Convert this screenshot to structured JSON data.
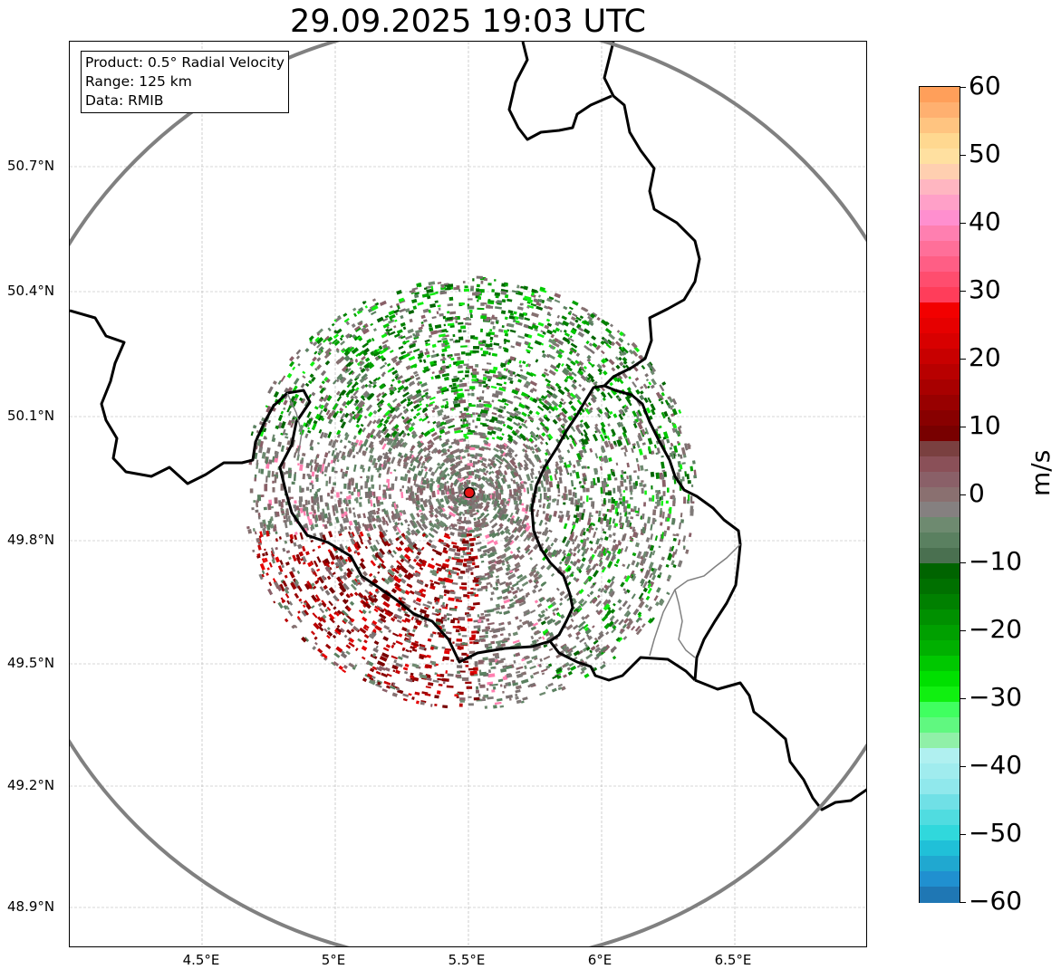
{
  "title": "29.09.2025 19:03 UTC",
  "info": {
    "product": "Product: 0.5° Radial Velocity",
    "range": "Range: 125 km",
    "source": "Data: RMIB"
  },
  "axes": {
    "x_ticks": [
      "4.5°E",
      "5°E",
      "5.5°E",
      "6°E",
      "6.5°E"
    ],
    "y_ticks": [
      "50.7°N",
      "50.4°N",
      "50.1°N",
      "49.8°N",
      "49.5°N",
      "49.2°N",
      "48.9°N"
    ]
  },
  "colorbar": {
    "unit": "m/s",
    "ticks": [
      "60",
      "50",
      "40",
      "30",
      "20",
      "10",
      "0",
      "−10",
      "−20",
      "−30",
      "−40",
      "−50",
      "−60"
    ],
    "colors": [
      "#ff9f5a",
      "#ffb070",
      "#ffc480",
      "#ffd890",
      "#ffe0a0",
      "#ffcfb0",
      "#ffb6c1",
      "#ffa0c8",
      "#ff8fcf",
      "#ff7fb0",
      "#ff6f99",
      "#ff5e85",
      "#ff4d6e",
      "#ff3d5a",
      "#f20000",
      "#e60000",
      "#d80000",
      "#c80000",
      "#b80000",
      "#a80000",
      "#980000",
      "#880000",
      "#780000",
      "#7a4040",
      "#8a5058",
      "#8a6068",
      "#8a7070",
      "#858080",
      "#6e8a70",
      "#5a8060",
      "#4a7050",
      "#006400",
      "#007000",
      "#008000",
      "#009000",
      "#00a000",
      "#00b000",
      "#00c800",
      "#00e000",
      "#10f010",
      "#40ff60",
      "#60f880",
      "#90f0a8",
      "#b0f0f0",
      "#a0ecee",
      "#90e8ec",
      "#70e0e6",
      "#50dce0",
      "#30d8dc",
      "#20c0d8",
      "#20a8d0",
      "#2090d0",
      "#1f77b4"
    ],
    "min": -60,
    "max": 60
  },
  "radar": {
    "site_lon": 5.5,
    "site_lat": 49.91,
    "range_km": 125
  }
}
